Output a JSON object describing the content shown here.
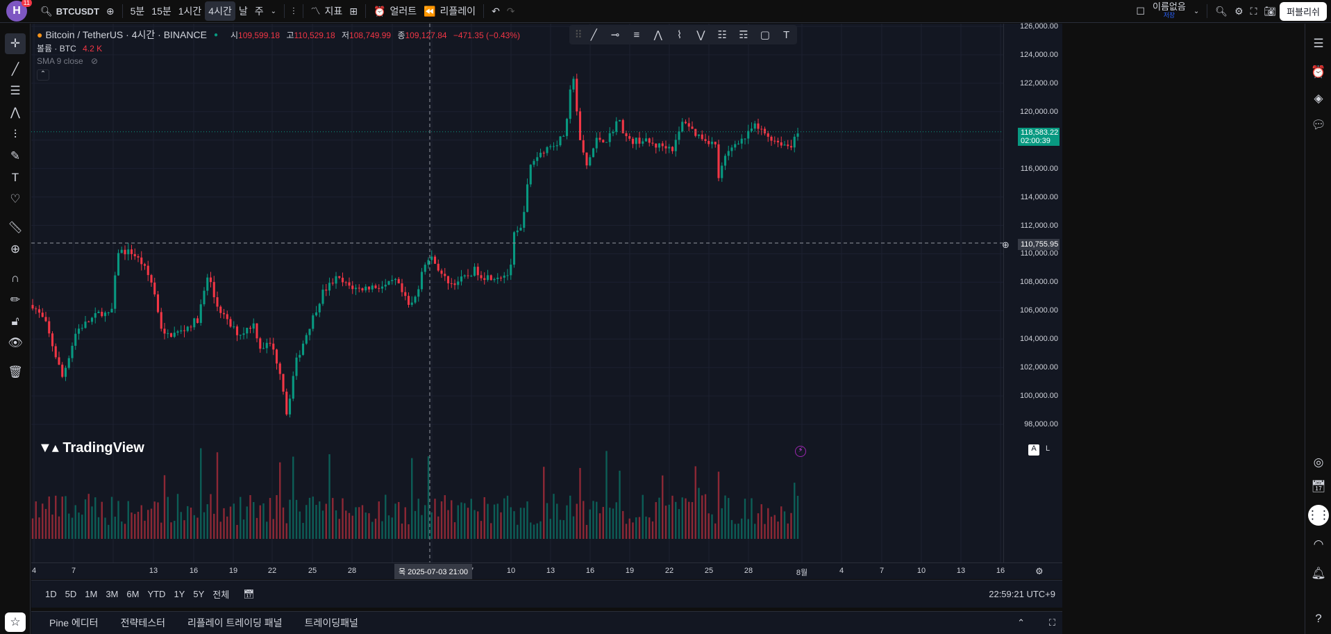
{
  "topbar": {
    "avatar_letter": "H",
    "notification_count": "11",
    "symbol": "BTCUSDT",
    "intervals": [
      "5분",
      "15분",
      "1시간",
      "4시간",
      "날",
      "주"
    ],
    "active_interval": "4시간",
    "indicators_label": "지표",
    "alert_label": "얼러트",
    "replay_label": "리플레이",
    "layout_name": "이름없음",
    "save_label": "저장",
    "publish_label": "퍼블리쉬"
  },
  "legend": {
    "title": "Bitcoin / TetherUS · 4시간 · BINANCE",
    "open_label": "시",
    "open": "109,599.18",
    "high_label": "고",
    "high": "110,529.18",
    "low_label": "저",
    "low": "108,749.99",
    "close_label": "종",
    "close": "109,127.84",
    "change": "−471.35 (−0.43%)",
    "volume_label": "볼륨 · BTC",
    "volume_value": "4.2 K",
    "sma_label": "SMA 9 close"
  },
  "price_axis": {
    "ticks": [
      "126,000.00",
      "124,000.00",
      "122,000.00",
      "120,000.00",
      "116,000.00",
      "114,000.00",
      "112,000.00",
      "110,000.00",
      "108,000.00",
      "106,000.00",
      "104,000.00",
      "102,000.00",
      "100,000.00",
      "98,000.00"
    ],
    "last_price": "118,583.22",
    "countdown": "02:00:39",
    "crosshair_price": "110,755.95"
  },
  "time_axis": {
    "ticks": [
      "4",
      "7",
      "13",
      "16",
      "19",
      "22",
      "25",
      "28",
      "7",
      "10",
      "13",
      "16",
      "19",
      "22",
      "25",
      "28",
      "8월",
      "4",
      "7",
      "10",
      "13",
      "16"
    ],
    "crosshair_time": "목 2025-07-03   21:00",
    "scale_a": "A",
    "scale_l": "L"
  },
  "branding": "TradingView",
  "rangebar": {
    "ranges": [
      "1D",
      "5D",
      "1M",
      "3M",
      "6M",
      "YTD",
      "1Y",
      "5Y",
      "전체"
    ],
    "clock": "22:59:21 UTC+9"
  },
  "bottompanel": {
    "tabs": [
      "Pine 에디터",
      "전략테스터",
      "리플레이 트레이딩 패널",
      "트레이딩패널"
    ]
  },
  "colors": {
    "up": "#089981",
    "down": "#f23645",
    "background": "#131722",
    "accent": "#2962ff"
  }
}
